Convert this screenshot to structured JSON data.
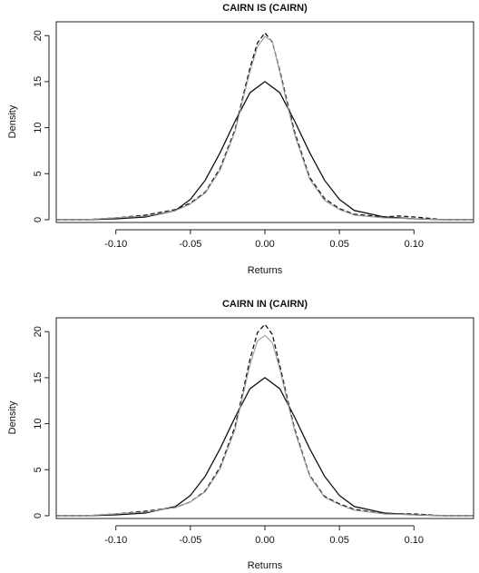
{
  "chart_data": [
    {
      "type": "line",
      "title": "CAIRN IS (CAIRN)",
      "xlabel": "Returns",
      "ylabel": "Density",
      "xlim": [
        -0.14,
        0.14
      ],
      "ylim": [
        -0.3,
        21.5
      ],
      "xticks": [
        -0.1,
        -0.05,
        0.0,
        0.05,
        0.1
      ],
      "xtick_labels": [
        "-0.10",
        "-0.05",
        "0.00",
        "0.05",
        "0.10"
      ],
      "yticks": [
        0,
        5,
        10,
        15,
        20
      ],
      "ytick_labels": [
        "0",
        "5",
        "10",
        "15",
        "20"
      ],
      "grid": false,
      "series": [
        {
          "style": "solid-black",
          "x": [
            -0.14,
            -0.12,
            -0.1,
            -0.08,
            -0.06,
            -0.05,
            -0.04,
            -0.03,
            -0.02,
            -0.01,
            0.0,
            0.01,
            0.02,
            0.03,
            0.04,
            0.05,
            0.06,
            0.08,
            0.1,
            0.12,
            0.14
          ],
          "y": [
            0.0,
            0.0,
            0.1,
            0.3,
            1.0,
            2.2,
            4.3,
            7.3,
            10.7,
            13.8,
            15.0,
            13.8,
            10.7,
            7.3,
            4.3,
            2.2,
            1.0,
            0.3,
            0.1,
            0.0,
            0.0
          ]
        },
        {
          "style": "dashed-black",
          "x": [
            -0.14,
            -0.12,
            -0.1,
            -0.08,
            -0.06,
            -0.05,
            -0.04,
            -0.03,
            -0.02,
            -0.015,
            -0.01,
            -0.005,
            0.0,
            0.005,
            0.01,
            0.015,
            0.02,
            0.03,
            0.04,
            0.05,
            0.06,
            0.08,
            0.09,
            0.1,
            0.12,
            0.14
          ],
          "y": [
            0.0,
            0.0,
            0.2,
            0.5,
            1.1,
            1.8,
            3.0,
            5.6,
            9.8,
            13.2,
            16.5,
            19.2,
            20.3,
            19.3,
            16.2,
            12.8,
            9.5,
            4.6,
            2.3,
            1.2,
            0.6,
            0.3,
            0.4,
            0.3,
            0.0,
            0.0
          ]
        },
        {
          "style": "solid-gray",
          "x": [
            -0.14,
            -0.12,
            -0.1,
            -0.08,
            -0.06,
            -0.05,
            -0.04,
            -0.03,
            -0.02,
            -0.015,
            -0.01,
            -0.005,
            0.0,
            0.005,
            0.01,
            0.015,
            0.02,
            0.03,
            0.04,
            0.05,
            0.06,
            0.08,
            0.1,
            0.12,
            0.14
          ],
          "y": [
            0.0,
            0.0,
            0.2,
            0.4,
            1.0,
            1.7,
            2.9,
            5.4,
            9.6,
            12.9,
            16.1,
            18.8,
            19.9,
            19.4,
            16.0,
            12.5,
            9.2,
            4.4,
            2.1,
            1.1,
            0.5,
            0.2,
            0.1,
            0.0,
            0.0
          ]
        }
      ]
    },
    {
      "type": "line",
      "title": "CAIRN IN (CAIRN)",
      "xlabel": "Returns",
      "ylabel": "Density",
      "xlim": [
        -0.14,
        0.14
      ],
      "ylim": [
        -0.3,
        21.5
      ],
      "xticks": [
        -0.1,
        -0.05,
        0.0,
        0.05,
        0.1
      ],
      "xtick_labels": [
        "-0.10",
        "-0.05",
        "0.00",
        "0.05",
        "0.10"
      ],
      "yticks": [
        0,
        5,
        10,
        15,
        20
      ],
      "ytick_labels": [
        "0",
        "5",
        "10",
        "15",
        "20"
      ],
      "grid": false,
      "series": [
        {
          "style": "solid-black",
          "x": [
            -0.14,
            -0.12,
            -0.1,
            -0.08,
            -0.06,
            -0.05,
            -0.04,
            -0.03,
            -0.02,
            -0.01,
            0.0,
            0.01,
            0.02,
            0.03,
            0.04,
            0.05,
            0.06,
            0.08,
            0.1,
            0.12,
            0.14
          ],
          "y": [
            0.0,
            0.0,
            0.1,
            0.3,
            1.0,
            2.2,
            4.3,
            7.3,
            10.7,
            13.8,
            15.0,
            13.8,
            10.7,
            7.3,
            4.3,
            2.2,
            1.0,
            0.3,
            0.1,
            0.0,
            0.0
          ]
        },
        {
          "style": "dashed-black",
          "x": [
            -0.14,
            -0.12,
            -0.1,
            -0.08,
            -0.06,
            -0.05,
            -0.04,
            -0.03,
            -0.02,
            -0.015,
            -0.01,
            -0.005,
            0.0,
            0.005,
            0.01,
            0.015,
            0.02,
            0.03,
            0.04,
            0.05,
            0.06,
            0.08,
            0.1,
            0.12,
            0.14
          ],
          "y": [
            0.0,
            0.0,
            0.2,
            0.5,
            0.9,
            1.5,
            2.7,
            5.3,
            9.7,
            13.3,
            17.0,
            19.9,
            20.8,
            19.7,
            16.3,
            12.8,
            9.4,
            4.4,
            2.1,
            1.3,
            0.7,
            0.2,
            0.2,
            0.0,
            0.0
          ]
        },
        {
          "style": "solid-gray",
          "x": [
            -0.14,
            -0.12,
            -0.1,
            -0.08,
            -0.06,
            -0.05,
            -0.04,
            -0.03,
            -0.02,
            -0.015,
            -0.01,
            -0.005,
            0.0,
            0.005,
            0.01,
            0.015,
            0.02,
            0.03,
            0.04,
            0.05,
            0.06,
            0.08,
            0.1,
            0.12,
            0.14
          ],
          "y": [
            0.0,
            0.0,
            0.2,
            0.4,
            0.9,
            1.5,
            2.6,
            5.1,
            9.4,
            12.9,
            16.4,
            19.0,
            19.6,
            18.8,
            15.9,
            12.5,
            9.2,
            4.3,
            2.0,
            1.2,
            0.6,
            0.2,
            0.1,
            0.0,
            0.0
          ]
        }
      ]
    }
  ],
  "colors": {
    "solid_black": "#111111",
    "dashed_black": "#111111",
    "solid_gray": "#9a9a9a",
    "frame": "#222222"
  }
}
